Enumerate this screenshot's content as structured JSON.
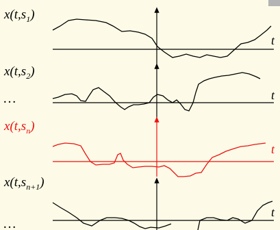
{
  "colors": {
    "background": "#fdfbe7",
    "ink": "#000000",
    "highlight": "#ee1111",
    "corner_tab": "#b4b4b4"
  },
  "rows": [
    {
      "label": {
        "var": "x(t,s",
        "sub": "1",
        "close": ")"
      },
      "axis_label": "t",
      "ellipsis": "",
      "highlight": false
    },
    {
      "label": {
        "var": "x(t,s",
        "sub": "2",
        "close": ")"
      },
      "axis_label": "t",
      "ellipsis": "…",
      "highlight": false
    },
    {
      "label": {
        "var": "x(t,s",
        "sub": "n",
        "close": ")"
      },
      "axis_label": "t",
      "ellipsis": "",
      "highlight": true
    },
    {
      "label": {
        "var": "x(t,s",
        "sub": "n+1",
        "close": ")"
      },
      "axis_label": "t",
      "ellipsis": "…",
      "highlight": false
    }
  ]
}
